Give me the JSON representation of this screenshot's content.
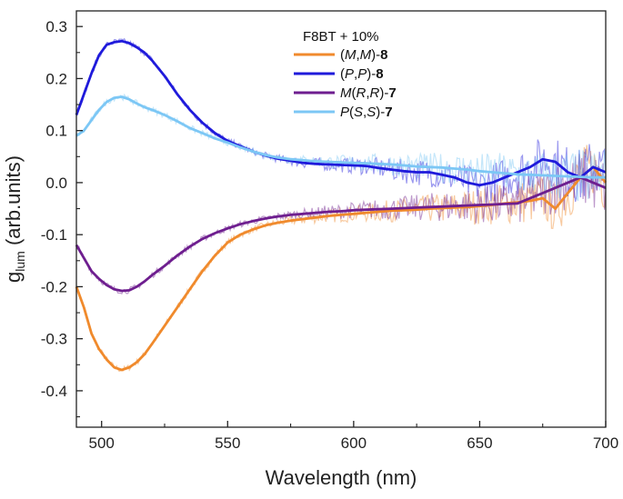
{
  "chart_data": {
    "type": "line",
    "title": "",
    "xlabel": "Wavelength (nm)",
    "ylabel": {
      "prefix": "g",
      "subscript": "lum",
      "suffix": " (arb.units)"
    },
    "xlim": [
      490,
      700
    ],
    "ylim": [
      -0.47,
      0.33
    ],
    "x_ticks": [
      500,
      550,
      600,
      650,
      700
    ],
    "x_tick_labels": [
      "500",
      "550",
      "600",
      "650",
      "700"
    ],
    "y_ticks": [
      -0.4,
      -0.3,
      -0.2,
      -0.1,
      0.0,
      0.1,
      0.2,
      0.3
    ],
    "y_tick_labels": [
      "-0.4",
      "-0.3",
      "-0.2",
      "-0.1",
      "0.0",
      "0.1",
      "0.2",
      "0.3"
    ],
    "legend": {
      "title": "F8BT + 10%",
      "placement": "top-right",
      "entries": [
        {
          "name": "(M,M)-8",
          "parts": [
            {
              "t": "(",
              "s": "n"
            },
            {
              "t": "M",
              "s": "i"
            },
            {
              "t": ",",
              "s": "n"
            },
            {
              "t": "M",
              "s": "i"
            },
            {
              "t": ")-",
              "s": "n"
            },
            {
              "t": "8",
              "s": "b"
            }
          ]
        },
        {
          "name": "(P,P)-8",
          "parts": [
            {
              "t": "(",
              "s": "n"
            },
            {
              "t": "P",
              "s": "i"
            },
            {
              "t": ",",
              "s": "n"
            },
            {
              "t": "P",
              "s": "i"
            },
            {
              "t": ")-",
              "s": "n"
            },
            {
              "t": "8",
              "s": "b"
            }
          ]
        },
        {
          "name": "M(R,R)-7",
          "parts": [
            {
              "t": "M",
              "s": "i"
            },
            {
              "t": "(",
              "s": "n"
            },
            {
              "t": "R",
              "s": "i"
            },
            {
              "t": ",",
              "s": "n"
            },
            {
              "t": "R",
              "s": "i"
            },
            {
              "t": ")-",
              "s": "n"
            },
            {
              "t": "7",
              "s": "b"
            }
          ]
        },
        {
          "name": "P(S,S)-7",
          "parts": [
            {
              "t": "P",
              "s": "i"
            },
            {
              "t": "(",
              "s": "n"
            },
            {
              "t": "S",
              "s": "i"
            },
            {
              "t": ",",
              "s": "n"
            },
            {
              "t": "S",
              "s": "i"
            },
            {
              "t": ")-",
              "s": "n"
            },
            {
              "t": "7",
              "s": "b"
            }
          ]
        }
      ]
    },
    "series": [
      {
        "name": "(M,M)-8",
        "color": "#F08A2C",
        "x": [
          490,
          493,
          496,
          499,
          502,
          505,
          508,
          511,
          514,
          517,
          520,
          525,
          530,
          535,
          540,
          545,
          550,
          555,
          560,
          565,
          570,
          575,
          580,
          585,
          590,
          595,
          600,
          605,
          610,
          615,
          620,
          625,
          630,
          635,
          640,
          645,
          650,
          655,
          660,
          665,
          670,
          675,
          680,
          685,
          690,
          695,
          700
        ],
        "values": [
          -0.2,
          -0.24,
          -0.29,
          -0.32,
          -0.34,
          -0.355,
          -0.36,
          -0.355,
          -0.345,
          -0.33,
          -0.31,
          -0.275,
          -0.24,
          -0.205,
          -0.17,
          -0.14,
          -0.115,
          -0.1,
          -0.09,
          -0.082,
          -0.077,
          -0.073,
          -0.07,
          -0.067,
          -0.064,
          -0.062,
          -0.06,
          -0.058,
          -0.056,
          -0.054,
          -0.053,
          -0.052,
          -0.05,
          -0.049,
          -0.048,
          -0.047,
          -0.045,
          -0.043,
          -0.04,
          -0.038,
          -0.035,
          -0.03,
          -0.05,
          -0.02,
          0.01,
          0.03,
          0.0
        ]
      },
      {
        "name": "(P,P)-8",
        "color": "#1F1ADB",
        "x": [
          490,
          493,
          496,
          499,
          502,
          505,
          508,
          511,
          514,
          517,
          520,
          525,
          530,
          535,
          540,
          545,
          550,
          555,
          560,
          565,
          570,
          575,
          580,
          585,
          590,
          595,
          600,
          605,
          610,
          615,
          620,
          625,
          630,
          635,
          640,
          645,
          650,
          655,
          660,
          665,
          670,
          675,
          680,
          685,
          690,
          695,
          700
        ],
        "values": [
          0.13,
          0.17,
          0.21,
          0.245,
          0.265,
          0.27,
          0.272,
          0.268,
          0.26,
          0.25,
          0.235,
          0.205,
          0.17,
          0.14,
          0.115,
          0.095,
          0.08,
          0.07,
          0.06,
          0.052,
          0.046,
          0.042,
          0.038,
          0.036,
          0.035,
          0.034,
          0.033,
          0.032,
          0.028,
          0.025,
          0.022,
          0.02,
          0.02,
          0.015,
          0.01,
          0.0,
          -0.005,
          0.0,
          0.01,
          0.02,
          0.03,
          0.045,
          0.04,
          0.02,
          0.01,
          0.03,
          0.02
        ]
      },
      {
        "name": "M(R,R)-7",
        "color": "#6E1E8F",
        "x": [
          490,
          493,
          496,
          499,
          502,
          505,
          508,
          511,
          514,
          517,
          520,
          525,
          530,
          535,
          540,
          545,
          550,
          555,
          560,
          565,
          570,
          575,
          580,
          585,
          590,
          595,
          600,
          605,
          610,
          615,
          620,
          625,
          630,
          635,
          640,
          645,
          650,
          655,
          660,
          665,
          670,
          675,
          680,
          685,
          690,
          695,
          700
        ],
        "values": [
          -0.12,
          -0.145,
          -0.17,
          -0.185,
          -0.197,
          -0.205,
          -0.208,
          -0.207,
          -0.2,
          -0.19,
          -0.178,
          -0.16,
          -0.14,
          -0.123,
          -0.108,
          -0.097,
          -0.088,
          -0.08,
          -0.074,
          -0.069,
          -0.065,
          -0.062,
          -0.06,
          -0.058,
          -0.056,
          -0.055,
          -0.053,
          -0.052,
          -0.051,
          -0.05,
          -0.049,
          -0.048,
          -0.047,
          -0.046,
          -0.045,
          -0.044,
          -0.043,
          -0.042,
          -0.041,
          -0.04,
          -0.03,
          -0.02,
          -0.01,
          0.0,
          0.01,
          0.0,
          -0.01
        ]
      },
      {
        "name": "P(S,S)-7",
        "color": "#7CC7F5",
        "x": [
          490,
          493,
          496,
          499,
          502,
          505,
          508,
          511,
          514,
          517,
          520,
          525,
          530,
          535,
          540,
          545,
          550,
          555,
          560,
          565,
          570,
          575,
          580,
          585,
          590,
          595,
          600,
          605,
          610,
          615,
          620,
          625,
          630,
          635,
          640,
          645,
          650,
          655,
          660,
          665,
          670,
          675,
          680,
          685,
          690,
          695,
          700
        ],
        "values": [
          0.09,
          0.1,
          0.12,
          0.14,
          0.155,
          0.163,
          0.165,
          0.16,
          0.152,
          0.145,
          0.14,
          0.13,
          0.118,
          0.105,
          0.095,
          0.085,
          0.077,
          0.068,
          0.06,
          0.053,
          0.048,
          0.045,
          0.043,
          0.041,
          0.04,
          0.039,
          0.038,
          0.037,
          0.036,
          0.035,
          0.033,
          0.031,
          0.03,
          0.029,
          0.027,
          0.025,
          0.022,
          0.02,
          0.018,
          0.016,
          0.015,
          0.014,
          0.013,
          0.012,
          0.011,
          0.01,
          0.01
        ]
      }
    ]
  }
}
